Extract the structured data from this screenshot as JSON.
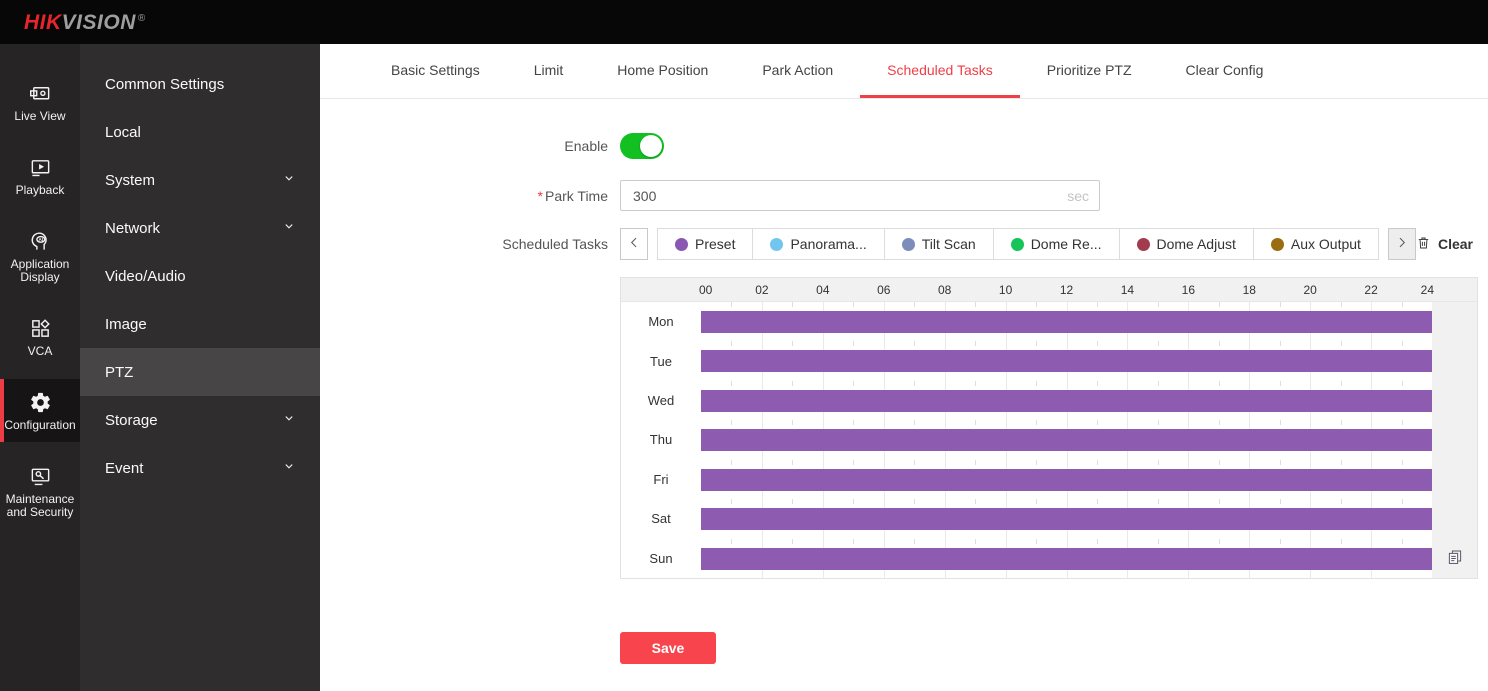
{
  "topbar": {
    "logo_primary": "HIK",
    "logo_secondary": "VISION",
    "registered": "®"
  },
  "nav_rail": {
    "items": [
      {
        "label": "Live View",
        "icon": "live-view-icon",
        "active": false
      },
      {
        "label": "Playback",
        "icon": "playback-icon",
        "active": false
      },
      {
        "label": "Application Display",
        "icon": "application-display-icon",
        "active": false
      },
      {
        "label": "VCA",
        "icon": "vca-icon",
        "active": false
      },
      {
        "label": "Configuration",
        "icon": "configuration-icon",
        "active": true
      },
      {
        "label": "Maintenance and Security",
        "icon": "maintenance-icon",
        "active": false
      }
    ]
  },
  "sidebar": {
    "items": [
      {
        "label": "Common Settings",
        "expandable": false,
        "active": false
      },
      {
        "label": "Local",
        "expandable": false,
        "active": false
      },
      {
        "label": "System",
        "expandable": true,
        "active": false
      },
      {
        "label": "Network",
        "expandable": true,
        "active": false
      },
      {
        "label": "Video/Audio",
        "expandable": false,
        "active": false
      },
      {
        "label": "Image",
        "expandable": false,
        "active": false
      },
      {
        "label": "PTZ",
        "expandable": false,
        "active": true
      },
      {
        "label": "Storage",
        "expandable": true,
        "active": false
      },
      {
        "label": "Event",
        "expandable": true,
        "active": false
      }
    ]
  },
  "tabs": [
    {
      "label": "Basic Settings",
      "active": false
    },
    {
      "label": "Limit",
      "active": false
    },
    {
      "label": "Home Position",
      "active": false
    },
    {
      "label": "Park Action",
      "active": false
    },
    {
      "label": "Scheduled Tasks",
      "active": true
    },
    {
      "label": "Prioritize PTZ",
      "active": false
    },
    {
      "label": "Clear Config",
      "active": false
    }
  ],
  "form": {
    "enable": {
      "label": "Enable",
      "on": true
    },
    "park_time": {
      "label": "Park Time",
      "required_mark": "*",
      "value": "300",
      "unit": "sec"
    },
    "scheduled_tasks_label": "Scheduled Tasks",
    "task_types": [
      {
        "label": "Preset",
        "color": "#8a57b2"
      },
      {
        "label": "Panorama...",
        "color": "#70c6ef"
      },
      {
        "label": "Tilt Scan",
        "color": "#7b8db8"
      },
      {
        "label": "Dome Re...",
        "color": "#16c45a"
      },
      {
        "label": "Dome Adjust",
        "color": "#a13c4f"
      },
      {
        "label": "Aux Output",
        "color": "#996d10"
      }
    ],
    "clear_label": "Clear",
    "save_label": "Save"
  },
  "schedule": {
    "hour_labels": [
      "00",
      "02",
      "04",
      "06",
      "08",
      "10",
      "12",
      "14",
      "16",
      "18",
      "20",
      "22",
      "24"
    ],
    "hours_total": 24,
    "days": [
      "Mon",
      "Tue",
      "Wed",
      "Thu",
      "Fri",
      "Sat",
      "Sun"
    ],
    "bars": [
      {
        "day": "Mon",
        "start": 0,
        "end": 24
      },
      {
        "day": "Tue",
        "start": 0,
        "end": 24
      },
      {
        "day": "Wed",
        "start": 0,
        "end": 24
      },
      {
        "day": "Thu",
        "start": 0,
        "end": 24
      },
      {
        "day": "Fri",
        "start": 0,
        "end": 24
      },
      {
        "day": "Sat",
        "start": 0,
        "end": 24
      },
      {
        "day": "Sun",
        "start": 0,
        "end": 24
      }
    ],
    "bar_color": "#8d5bb0"
  },
  "colors": {
    "accent_red": "#ee4048",
    "save_red": "#f8454d",
    "toggle_green": "#12c022",
    "bar_purple": "#8d5bb0"
  }
}
